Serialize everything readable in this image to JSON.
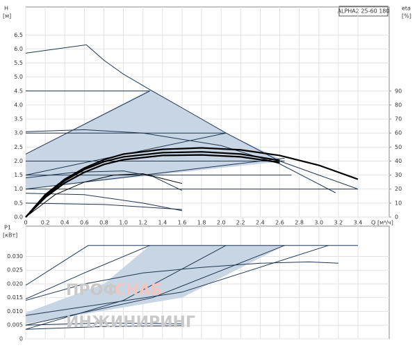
{
  "header": {
    "model": "ALPHA2 25-60 180"
  },
  "watermark": {
    "line1": "ПРОФ",
    "line2": "СНАБ",
    "line3": "ИНЖИНИРИНГ"
  },
  "chart_data": [
    {
      "type": "line",
      "y_label": "H",
      "y_unit": "[м]",
      "y2_label": "eta",
      "y2_unit": "[%]",
      "x_label": "Q",
      "x_unit": "[м³/ч]",
      "xlim": [
        0,
        3.72
      ],
      "ylim": [
        0,
        7.5
      ],
      "y2lim": [
        0,
        150
      ],
      "grid": true,
      "xticks": [
        0,
        0.2,
        0.4,
        0.6,
        0.8,
        {
          "value": 1,
          "label": "1.0"
        },
        1.2,
        1.4,
        1.6,
        1.8,
        {
          "value": 2,
          "label": "2.0"
        },
        2.2,
        2.4,
        2.6,
        2.8,
        {
          "value": 3,
          "label": "3.0"
        },
        3.2,
        3.4
      ],
      "yticks": [
        {
          "value": 0,
          "label": "0.0"
        },
        0.5,
        {
          "value": 1,
          "label": "1.0"
        },
        1.5,
        {
          "value": 2,
          "label": "2.0"
        },
        2.5,
        {
          "value": 3,
          "label": "3.0"
        },
        3.5,
        {
          "value": 4,
          "label": "4.0"
        },
        4.5,
        {
          "value": 5,
          "label": "5.0"
        },
        5.5,
        {
          "value": 6,
          "label": "6.0"
        },
        6.5
      ],
      "y2ticks": [
        0,
        10,
        20,
        30,
        40,
        50,
        60,
        70,
        80,
        90
      ],
      "series": [
        {
          "style": "area",
          "color": "#c8d5e4",
          "x": [
            0,
            0,
            1.27,
            2.05,
            2.65,
            0
          ],
          "values": [
            1,
            2.25,
            4.55,
            3,
            2,
            1
          ]
        },
        {
          "style": "thin",
          "color": "#1f3550",
          "x": [
            0,
            0.62,
            0.8,
            1,
            1.27,
            1.6,
            2.05,
            2.6,
            3,
            3.4
          ],
          "values": [
            5.85,
            6.15,
            5.6,
            5.1,
            4.55,
            3.9,
            3,
            2,
            1.5,
            1
          ]
        },
        {
          "style": "thin",
          "color": "#1f3550",
          "x": [
            0,
            1.27
          ],
          "values": [
            4.5,
            4.5
          ]
        },
        {
          "style": "thin",
          "color": "#1f3550",
          "x": [
            0,
            2.05
          ],
          "values": [
            3,
            3
          ]
        },
        {
          "style": "thin",
          "color": "#1f3550",
          "x": [
            0,
            2.65
          ],
          "values": [
            2,
            2
          ]
        },
        {
          "style": "thin",
          "color": "#1f3550",
          "x": [
            0,
            2.72
          ],
          "values": [
            1.5,
            1.5
          ]
        },
        {
          "style": "thin",
          "color": "#1f3550",
          "x": [
            0,
            1.27
          ],
          "values": [
            2.25,
            4.5
          ]
        },
        {
          "style": "thin",
          "color": "#1f3550",
          "x": [
            0,
            2.05
          ],
          "values": [
            1.5,
            3
          ]
        },
        {
          "style": "thin",
          "color": "#1f3550",
          "x": [
            0,
            2.65
          ],
          "values": [
            1,
            2.1
          ]
        },
        {
          "style": "thin",
          "color": "#1f3550",
          "x": [
            0,
            3.4
          ],
          "values": [
            1,
            1
          ]
        },
        {
          "style": "thin",
          "color": "#1f3550",
          "x": [
            0,
            0.6,
            1.2,
            2,
            2.6,
            3.17
          ],
          "values": [
            3.05,
            3.12,
            3,
            2.55,
            1.9,
            0.87
          ]
        },
        {
          "style": "thin",
          "color": "#1f3550",
          "x": [
            0,
            0.5,
            1,
            1.3,
            1.6
          ],
          "values": [
            1.4,
            1.6,
            1.65,
            1.45,
            0.95
          ]
        },
        {
          "style": "thin",
          "color": "#1f3550",
          "x": [
            0,
            0.6,
            1.2,
            1.6
          ],
          "values": [
            0.85,
            0.8,
            0.5,
            0.23
          ]
        },
        {
          "style": "thin",
          "color": "#1f3550",
          "x": [
            0,
            0.8,
            1.6
          ],
          "values": [
            0.5,
            0.45,
            0.27
          ]
        },
        {
          "style": "thick",
          "color": "#000000",
          "x": [
            0,
            0.2,
            0.4,
            0.6,
            0.8,
            1,
            1.4,
            1.8,
            2.2,
            2.6,
            3,
            3.4
          ],
          "values": [
            0,
            0.8,
            1.35,
            1.75,
            2.05,
            2.25,
            2.42,
            2.47,
            2.4,
            2.2,
            1.85,
            1.35
          ]
        },
        {
          "style": "thick",
          "color": "#000000",
          "x": [
            0,
            0.2,
            0.4,
            0.6,
            0.8,
            1,
            1.4,
            1.8,
            2.2,
            2.6
          ],
          "values": [
            0,
            0.75,
            1.3,
            1.7,
            1.98,
            2.15,
            2.3,
            2.33,
            2.25,
            2.02
          ]
        },
        {
          "style": "thick",
          "color": "#000000",
          "x": [
            0,
            0.2,
            0.4,
            0.6,
            0.8,
            1,
            1.4,
            1.8,
            2.2,
            2.6
          ],
          "values": [
            0,
            0.7,
            1.22,
            1.6,
            1.88,
            2.05,
            2.2,
            2.22,
            2.15,
            1.95
          ]
        },
        {
          "style": "thin",
          "color": "#000000",
          "x": [
            0,
            0.3,
            0.6,
            0.9,
            1.2,
            1.6
          ],
          "values": [
            0,
            0.8,
            1.25,
            1.5,
            1.55,
            1.2
          ]
        }
      ]
    },
    {
      "type": "line",
      "y_label": "P1",
      "y_unit": "[кВт]",
      "xlim": [
        0,
        3.72
      ],
      "ylim": [
        0,
        0.041
      ],
      "grid": true,
      "xticks": [
        0,
        0.2,
        0.4,
        0.6,
        0.8,
        1,
        1.2,
        1.4,
        1.6,
        1.8,
        2,
        2.2,
        2.4,
        2.6,
        2.8,
        3,
        3.2,
        3.4
      ],
      "yticks": [
        0,
        {
          "value": 0.005,
          "label": "0.005"
        },
        {
          "value": 0.01,
          "label": "0.010"
        },
        {
          "value": 0.015,
          "label": "0.015"
        },
        {
          "value": 0.02,
          "label": "0.020"
        },
        {
          "value": 0.025,
          "label": "0.025"
        },
        {
          "value": 0.03,
          "label": "0.030"
        }
      ],
      "series": [
        {
          "style": "area",
          "color": "#c8d5e4",
          "x": [
            0,
            0,
            0.8,
            1.27,
            2.65,
            1.6,
            0
          ],
          "values": [
            0.0055,
            0.0095,
            0.02,
            0.034,
            0.034,
            0.015,
            0.0055
          ]
        },
        {
          "style": "thin",
          "color": "#1f3550",
          "x": [
            0.64,
            3.4
          ],
          "values": [
            0.034,
            0.034
          ]
        },
        {
          "style": "thin",
          "color": "#1f3550",
          "x": [
            0,
            0.64
          ],
          "values": [
            0.0195,
            0.034
          ]
        },
        {
          "style": "thin",
          "color": "#1f3550",
          "x": [
            0,
            0.6,
            1.27
          ],
          "values": [
            0.0145,
            0.024,
            0.034
          ]
        },
        {
          "style": "thin",
          "color": "#1f3550",
          "x": [
            0,
            1,
            2.05
          ],
          "values": [
            0.0035,
            0.014,
            0.034
          ]
        },
        {
          "style": "thin",
          "color": "#1f3550",
          "x": [
            0,
            1.3,
            2.65
          ],
          "values": [
            0.005,
            0.015,
            0.034
          ]
        },
        {
          "style": "thin",
          "color": "#1f3550",
          "x": [
            0,
            1.6,
            3.1
          ],
          "values": [
            0.0085,
            0.017,
            0.034
          ]
        },
        {
          "style": "thin",
          "color": "#1f3550",
          "x": [
            0,
            0.6,
            1.2,
            1.8,
            2.4,
            2.9,
            3.2
          ],
          "values": [
            0.014,
            0.02,
            0.024,
            0.026,
            0.0275,
            0.028,
            0.0275
          ]
        },
        {
          "style": "thin",
          "color": "#1f3550",
          "x": [
            0,
            0.8,
            1.6
          ],
          "values": [
            0.005,
            0.0058,
            0.0055
          ]
        },
        {
          "style": "thin",
          "color": "#1f3550",
          "x": [
            0,
            0.8,
            1.6
          ],
          "values": [
            0.0035,
            0.0045,
            0.0048
          ]
        }
      ]
    }
  ]
}
